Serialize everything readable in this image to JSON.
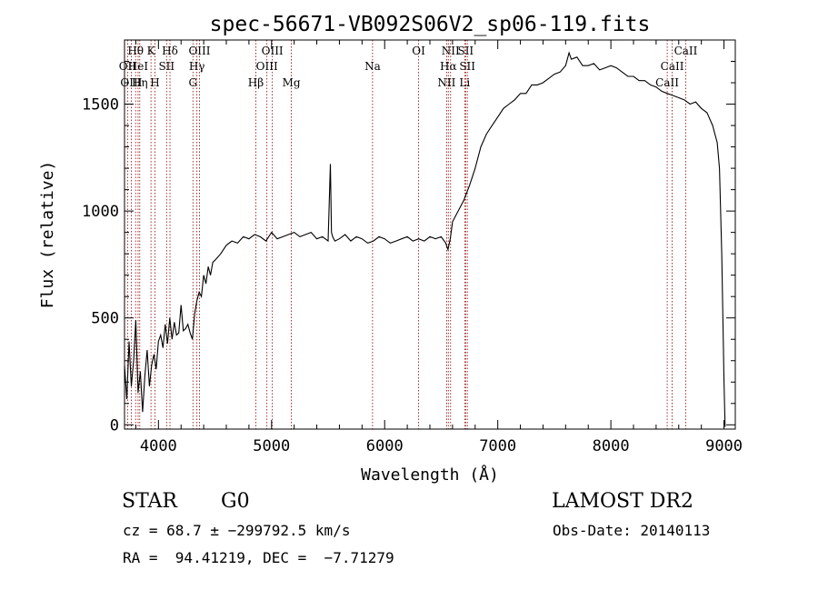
{
  "chart_data": {
    "type": "line",
    "title": "spec-56671-VB092S06V2_sp06-119.fits",
    "xlabel": "Wavelength (Å)",
    "ylabel": "Flux (relative)",
    "xlim": [
      3700,
      9100
    ],
    "ylim": [
      -20,
      1800
    ],
    "xticks": [
      4000,
      5000,
      6000,
      7000,
      8000,
      9000
    ],
    "yticks": [
      0,
      500,
      1000,
      1500
    ],
    "grid": false,
    "line_color": "#000000",
    "marker_color": "#8b0000",
    "series": [
      {
        "x": [
          3700,
          3720,
          3740,
          3760,
          3780,
          3800,
          3820,
          3840,
          3860,
          3880,
          3900,
          3920,
          3940,
          3960,
          3980,
          4000,
          4020,
          4040,
          4060,
          4080,
          4100,
          4120,
          4140,
          4160,
          4180,
          4200,
          4220,
          4240,
          4260,
          4280,
          4300,
          4320,
          4340,
          4360,
          4380,
          4400,
          4420,
          4440,
          4460,
          4480,
          4500,
          4550,
          4600,
          4650,
          4700,
          4750,
          4800,
          4850,
          4900,
          4950,
          5000,
          5050,
          5100,
          5150,
          5200,
          5250,
          5300,
          5350,
          5400,
          5450,
          5500,
          5520,
          5530,
          5540,
          5560,
          5600,
          5650,
          5700,
          5750,
          5800,
          5850,
          5900,
          5950,
          6000,
          6050,
          6100,
          6150,
          6200,
          6250,
          6300,
          6350,
          6400,
          6450,
          6500,
          6540,
          6560,
          6580,
          6600,
          6650,
          6700,
          6750,
          6800,
          6850,
          6900,
          6950,
          7000,
          7050,
          7100,
          7150,
          7200,
          7250,
          7300,
          7350,
          7400,
          7450,
          7500,
          7550,
          7600,
          7630,
          7650,
          7700,
          7750,
          7800,
          7850,
          7900,
          7950,
          8000,
          8050,
          8100,
          8150,
          8200,
          8250,
          8300,
          8350,
          8400,
          8450,
          8500,
          8550,
          8600,
          8650,
          8700,
          8750,
          8800,
          8850,
          8900,
          8920,
          8940,
          8960,
          8980,
          9000,
          9010
        ],
        "y": [
          280,
          120,
          390,
          180,
          300,
          490,
          150,
          250,
          60,
          230,
          350,
          180,
          280,
          330,
          260,
          390,
          420,
          360,
          470,
          380,
          500,
          400,
          480,
          420,
          430,
          560,
          440,
          450,
          470,
          430,
          400,
          520,
          580,
          620,
          600,
          700,
          660,
          740,
          700,
          760,
          770,
          800,
          840,
          860,
          850,
          880,
          870,
          890,
          880,
          860,
          900,
          870,
          880,
          890,
          900,
          880,
          890,
          900,
          870,
          880,
          860,
          1220,
          900,
          880,
          860,
          870,
          890,
          860,
          880,
          870,
          850,
          860,
          880,
          870,
          850,
          860,
          870,
          880,
          860,
          870,
          860,
          880,
          870,
          880,
          850,
          820,
          870,
          950,
          1000,
          1050,
          1120,
          1200,
          1300,
          1360,
          1400,
          1440,
          1480,
          1500,
          1520,
          1550,
          1550,
          1590,
          1590,
          1600,
          1620,
          1640,
          1650,
          1680,
          1740,
          1710,
          1720,
          1680,
          1680,
          1690,
          1660,
          1670,
          1680,
          1670,
          1650,
          1630,
          1630,
          1610,
          1610,
          1590,
          1580,
          1560,
          1550,
          1540,
          1530,
          1520,
          1500,
          1510,
          1480,
          1460,
          1400,
          1360,
          1320,
          1200,
          800,
          200,
          -10
        ]
      }
    ],
    "lines": [
      {
        "label": "Hθ",
        "x": 3798,
        "row": 0
      },
      {
        "label": "OII",
        "x": 3727,
        "row": 1
      },
      {
        "label": "OIII",
        "x": 3760,
        "row": 2
      },
      {
        "label": "HeI",
        "x": 3820,
        "row": 1
      },
      {
        "label": "Hη",
        "x": 3835,
        "row": 2
      },
      {
        "label": "K",
        "x": 3934,
        "row": 0
      },
      {
        "label": "H",
        "x": 3969,
        "row": 2
      },
      {
        "label": "Hδ",
        "x": 4102,
        "row": 0
      },
      {
        "label": "SII",
        "x": 4072,
        "row": 1
      },
      {
        "label": "OIII",
        "x": 4363,
        "row": 0
      },
      {
        "label": "Hγ",
        "x": 4340,
        "row": 1
      },
      {
        "label": "G",
        "x": 4305,
        "row": 2
      },
      {
        "label": "Hβ",
        "x": 4861,
        "row": 2
      },
      {
        "label": "OIII",
        "x": 5007,
        "row": 0
      },
      {
        "label": "OIII",
        "x": 4959,
        "row": 1
      },
      {
        "label": "Mg",
        "x": 5175,
        "row": 2
      },
      {
        "label": "Na",
        "x": 5893,
        "row": 1
      },
      {
        "label": "OI",
        "x": 6300,
        "row": 0
      },
      {
        "label": "NII",
        "x": 6583,
        "row": 0
      },
      {
        "label": "Hα",
        "x": 6563,
        "row": 1
      },
      {
        "label": "NII",
        "x": 6548,
        "row": 2
      },
      {
        "label": "SII",
        "x": 6716,
        "row": 0
      },
      {
        "label": "SII",
        "x": 6731,
        "row": 1
      },
      {
        "label": "Li",
        "x": 6708,
        "row": 2
      },
      {
        "label": "CaII",
        "x": 8662,
        "row": 0
      },
      {
        "label": "CaII",
        "x": 8542,
        "row": 1
      },
      {
        "label": "CaII",
        "x": 8498,
        "row": 2
      }
    ]
  },
  "info": {
    "object_class": "STAR",
    "subclass": "G0",
    "survey": "LAMOST DR2",
    "redshift_line": "cz = 68.7 ± −299792.5 km/s",
    "obs_date_line": "Obs-Date: 20140113",
    "coords_line": "RA =  94.41219, DEC =  −7.71279"
  }
}
